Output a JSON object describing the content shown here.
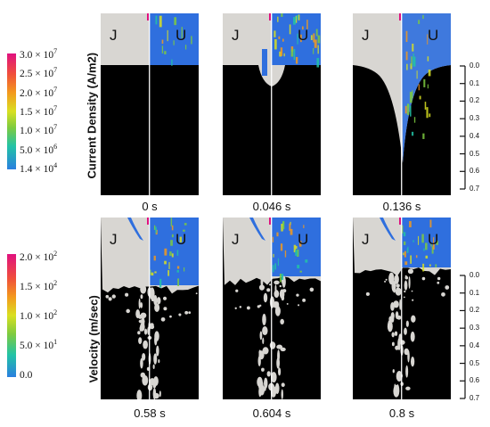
{
  "colorbars": {
    "current": {
      "title": "Current Density (A/m2)",
      "labels": [
        {
          "mant": "3.0 × 10",
          "exp": "7"
        },
        {
          "mant": "2.5 × 10",
          "exp": "7"
        },
        {
          "mant": "2.0 × 10",
          "exp": "7"
        },
        {
          "mant": "1.5 × 10",
          "exp": "7"
        },
        {
          "mant": "1.0 × 10",
          "exp": "7"
        },
        {
          "mant": "5.0 × 10",
          "exp": "6"
        },
        {
          "mant": "1.4 × 10",
          "exp": "4"
        }
      ]
    },
    "velocity": {
      "title": "Velocity (m/sec)",
      "labels": [
        {
          "mant": "2.0 × 10",
          "exp": "2"
        },
        {
          "mant": "1.5 × 10",
          "exp": "2"
        },
        {
          "mant": "1.0 × 10",
          "exp": "2"
        },
        {
          "mant": "5.0 × 10",
          "exp": "1"
        },
        {
          "mant": "0.0",
          "exp": ""
        }
      ]
    }
  },
  "panels": {
    "top": [
      {
        "time": "0 s",
        "left": "J",
        "right": "U",
        "level": 0.0
      },
      {
        "time": "0.046 s",
        "left": "J",
        "right": "U",
        "level": 0.3
      },
      {
        "time": "0.136 s",
        "left": "J",
        "right": "U",
        "level": 1.0
      }
    ],
    "bottom": [
      {
        "time": "0.58 s",
        "left": "J",
        "right": "U",
        "level": 1.0
      },
      {
        "time": "0.604 s",
        "left": "J",
        "right": "U",
        "level": 1.0
      },
      {
        "time": "0.8 s",
        "left": "J",
        "right": "U",
        "level": 1.0
      }
    ]
  },
  "rulers": {
    "labels": [
      "0.0",
      "0.1",
      "0.2",
      "0.3",
      "0.4",
      "0.5",
      "0.6",
      "0.7"
    ]
  },
  "colors": {
    "scale": [
      "#e0117f",
      "#f0503a",
      "#f39a1d",
      "#d9e021",
      "#7ecb3f",
      "#22c3a6",
      "#2a7fe0"
    ],
    "metal": "#d8d6d2",
    "fluid_bg": "#000000",
    "blue": "#2f6fde"
  }
}
